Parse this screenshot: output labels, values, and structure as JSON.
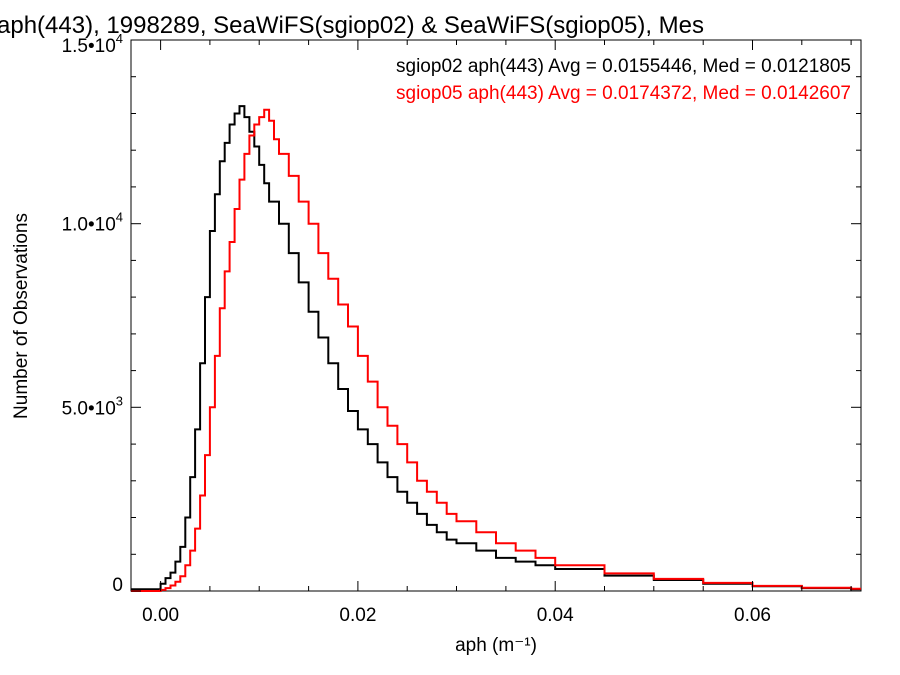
{
  "chart_data": {
    "type": "line",
    "title": "aph(443), 1998289, SeaWiFS(sgiop02) & SeaWiFS(sgiop05), Mes",
    "xlabel": "aph (m⁻¹)",
    "ylabel": "Number of Observations",
    "xlim": [
      -0.003,
      0.071
    ],
    "ylim": [
      0,
      15000
    ],
    "x_ticks": [
      {
        "value": 0.0,
        "label": "0.00"
      },
      {
        "value": 0.02,
        "label": "0.02"
      },
      {
        "value": 0.04,
        "label": "0.04"
      },
      {
        "value": 0.06,
        "label": "0.06"
      }
    ],
    "y_ticks": [
      {
        "value": 0,
        "label": "0",
        "mantissa": "",
        "exponent": ""
      },
      {
        "value": 5000,
        "label": "5.0•10³",
        "mantissa": "5.0•10",
        "exponent": "3"
      },
      {
        "value": 10000,
        "label": "1.0•10⁴",
        "mantissa": "1.0•10",
        "exponent": "4"
      },
      {
        "value": 15000,
        "label": "1.5•10⁴",
        "mantissa": "1.5•10",
        "exponent": "4"
      }
    ],
    "legend": [
      {
        "text": "sgiop02 aph(443) Avg = 0.0155446, Med = 0.0121805",
        "color": "#000000"
      },
      {
        "text": "sgiop05 aph(443) Avg = 0.0174372, Med = 0.0142607",
        "color": "#ff0000"
      }
    ],
    "legend_position": "top-right",
    "grid": false,
    "series": [
      {
        "color": "#000000",
        "style": "step",
        "x": [
          -0.0005,
          0.0,
          0.0005,
          0.001,
          0.0015,
          0.002,
          0.0025,
          0.003,
          0.0035,
          0.004,
          0.0045,
          0.005,
          0.0055,
          0.006,
          0.0065,
          0.007,
          0.0075,
          0.008,
          0.0085,
          0.009,
          0.0095,
          0.01,
          0.0105,
          0.011,
          0.012,
          0.013,
          0.014,
          0.015,
          0.016,
          0.017,
          0.018,
          0.019,
          0.02,
          0.021,
          0.022,
          0.023,
          0.024,
          0.025,
          0.026,
          0.027,
          0.028,
          0.029,
          0.03,
          0.032,
          0.034,
          0.036,
          0.038,
          0.04,
          0.045,
          0.05,
          0.055,
          0.06,
          0.065,
          0.07
        ],
        "y": [
          50,
          200,
          350,
          500,
          800,
          1200,
          2000,
          3100,
          4400,
          6200,
          8000,
          9800,
          10800,
          11700,
          12200,
          12700,
          13000,
          13200,
          12900,
          12500,
          12100,
          11600,
          11100,
          10600,
          10000,
          9200,
          8400,
          7600,
          6900,
          6200,
          5500,
          4900,
          4400,
          4000,
          3500,
          3100,
          2700,
          2400,
          2100,
          1800,
          1600,
          1400,
          1300,
          1100,
          900,
          800,
          700,
          600,
          420,
          300,
          200,
          130,
          80,
          50
        ]
      },
      {
        "color": "#ff0000",
        "style": "step",
        "x": [
          -0.0005,
          0.0,
          0.0005,
          0.001,
          0.0015,
          0.002,
          0.0025,
          0.003,
          0.0035,
          0.004,
          0.0045,
          0.005,
          0.0055,
          0.006,
          0.0065,
          0.007,
          0.0075,
          0.008,
          0.0085,
          0.009,
          0.0095,
          0.01,
          0.0105,
          0.011,
          0.0115,
          0.012,
          0.013,
          0.014,
          0.015,
          0.016,
          0.017,
          0.018,
          0.019,
          0.02,
          0.021,
          0.022,
          0.023,
          0.024,
          0.025,
          0.026,
          0.027,
          0.028,
          0.029,
          0.03,
          0.032,
          0.034,
          0.036,
          0.038,
          0.04,
          0.045,
          0.05,
          0.055,
          0.06,
          0.065,
          0.07
        ],
        "y": [
          0,
          30,
          80,
          150,
          250,
          400,
          700,
          1100,
          1700,
          2600,
          3700,
          5000,
          6400,
          7700,
          8700,
          9500,
          10400,
          11200,
          11900,
          12400,
          12700,
          12900,
          13100,
          12800,
          12300,
          11900,
          11300,
          10600,
          10000,
          9200,
          8500,
          7800,
          7200,
          6400,
          5700,
          5000,
          4500,
          4000,
          3500,
          3000,
          2700,
          2400,
          2100,
          1900,
          1600,
          1300,
          1100,
          900,
          700,
          480,
          330,
          220,
          140,
          90,
          60
        ]
      }
    ]
  }
}
